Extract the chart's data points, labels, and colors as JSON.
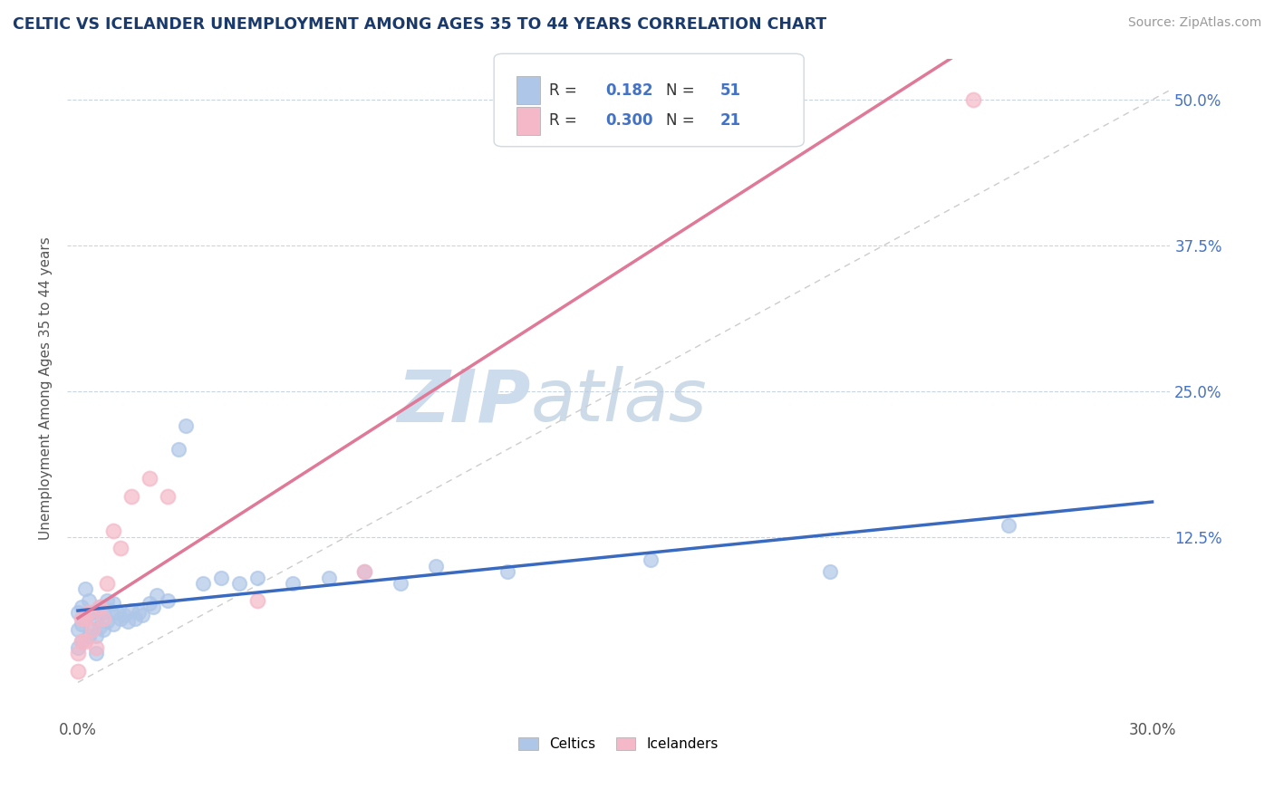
{
  "title": "CELTIC VS ICELANDER UNEMPLOYMENT AMONG AGES 35 TO 44 YEARS CORRELATION CHART",
  "source": "Source: ZipAtlas.com",
  "ylabel": "Unemployment Among Ages 35 to 44 years",
  "xlim": [
    -0.003,
    0.305
  ],
  "ylim": [
    -0.03,
    0.535
  ],
  "celtics_R": 0.182,
  "celtics_N": 51,
  "icelanders_R": 0.3,
  "icelanders_N": 21,
  "celtics_color": "#aec6e8",
  "icelanders_color": "#f4b8c8",
  "celtics_line_color": "#3a6abf",
  "icelanders_line_color": "#e07898",
  "diag_line_color": "#cccccc",
  "background_color": "#ffffff",
  "grid_color": "#c8d4e0",
  "watermark_color": "#ccdcec",
  "x_tick_vals": [
    0.0,
    0.3
  ],
  "x_tick_labels": [
    "0.0%",
    "30.0%"
  ],
  "y_tick_vals": [
    0.125,
    0.25,
    0.375,
    0.5
  ],
  "y_tick_labels": [
    "12.5%",
    "25.0%",
    "37.5%",
    "50.0%"
  ],
  "celtics_x": [
    0.0,
    0.0,
    0.0,
    0.001,
    0.001,
    0.001,
    0.002,
    0.002,
    0.003,
    0.003,
    0.004,
    0.004,
    0.005,
    0.005,
    0.005,
    0.006,
    0.006,
    0.007,
    0.007,
    0.008,
    0.008,
    0.009,
    0.01,
    0.01,
    0.011,
    0.012,
    0.013,
    0.014,
    0.015,
    0.016,
    0.017,
    0.018,
    0.02,
    0.021,
    0.022,
    0.025,
    0.028,
    0.03,
    0.035,
    0.04,
    0.045,
    0.05,
    0.06,
    0.07,
    0.08,
    0.09,
    0.1,
    0.12,
    0.16,
    0.21,
    0.26
  ],
  "celtics_y": [
    0.06,
    0.045,
    0.03,
    0.065,
    0.05,
    0.035,
    0.08,
    0.055,
    0.07,
    0.04,
    0.06,
    0.045,
    0.055,
    0.04,
    0.025,
    0.065,
    0.048,
    0.06,
    0.045,
    0.07,
    0.052,
    0.062,
    0.068,
    0.05,
    0.06,
    0.055,
    0.058,
    0.052,
    0.062,
    0.055,
    0.06,
    0.058,
    0.068,
    0.065,
    0.075,
    0.07,
    0.2,
    0.22,
    0.085,
    0.09,
    0.085,
    0.09,
    0.085,
    0.09,
    0.095,
    0.085,
    0.1,
    0.095,
    0.105,
    0.095,
    0.135
  ],
  "icelanders_x": [
    0.0,
    0.0,
    0.001,
    0.001,
    0.002,
    0.002,
    0.003,
    0.004,
    0.005,
    0.006,
    0.007,
    0.008,
    0.01,
    0.012,
    0.015,
    0.02,
    0.025,
    0.05,
    0.08,
    0.16,
    0.25
  ],
  "icelanders_y": [
    0.025,
    0.01,
    0.055,
    0.035,
    0.055,
    0.035,
    0.06,
    0.045,
    0.03,
    0.065,
    0.055,
    0.085,
    0.13,
    0.115,
    0.16,
    0.175,
    0.16,
    0.07,
    0.095,
    0.5,
    0.5
  ]
}
